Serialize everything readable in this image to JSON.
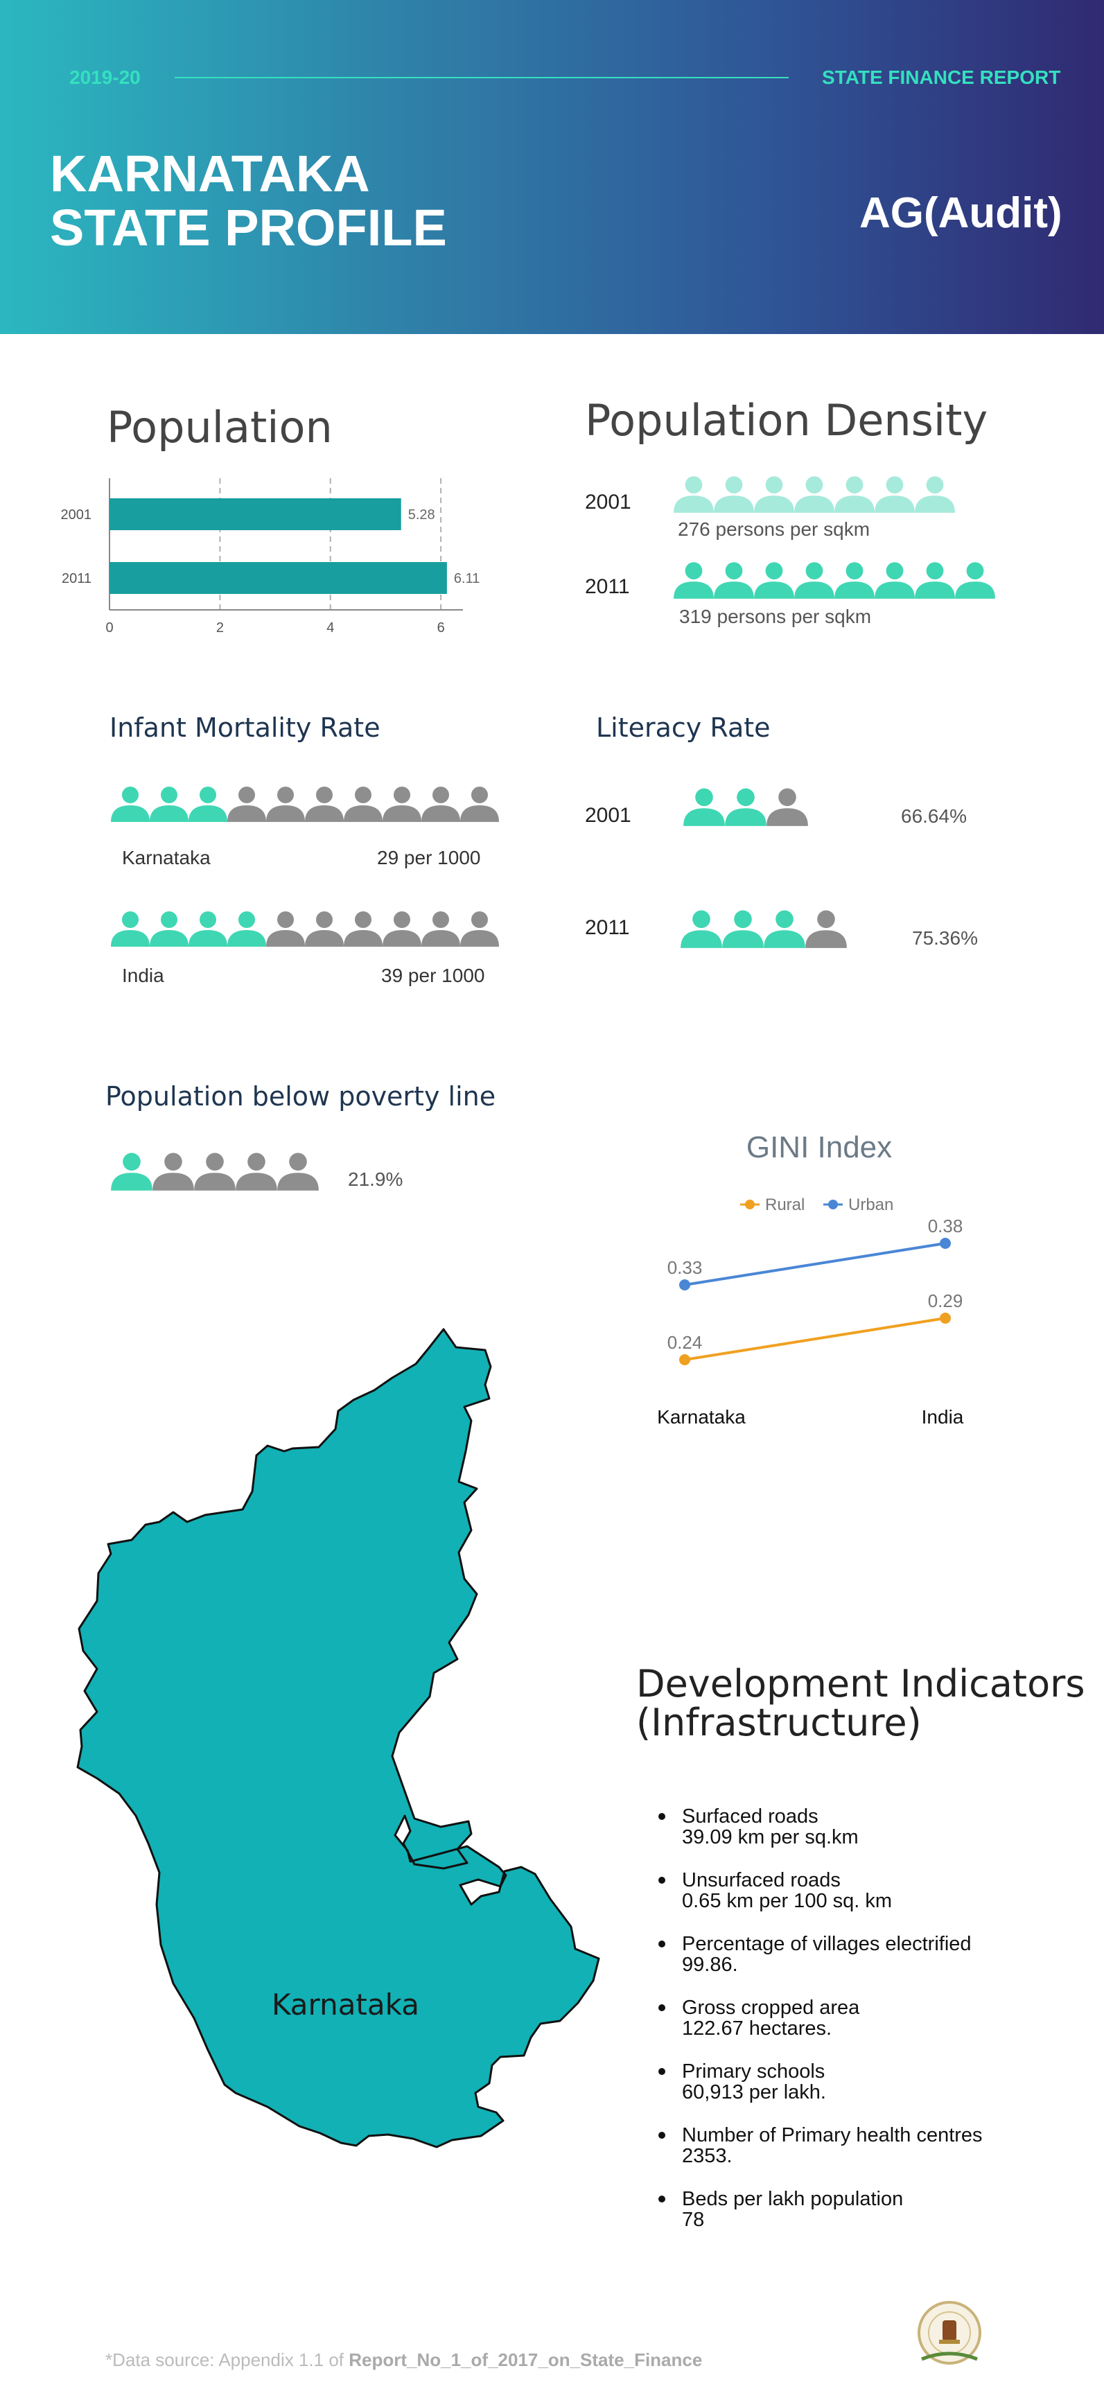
{
  "header": {
    "year": "2019-20",
    "report": "STATE FINANCE REPORT",
    "title_line1": "KARNATAKA",
    "title_line2": "STATE PROFILE",
    "org": "AG(Audit)"
  },
  "population": {
    "title": "Population",
    "chart_data": {
      "type": "bar",
      "orientation": "horizontal",
      "categories": [
        "2001",
        "2011"
      ],
      "values": [
        5.28,
        6.11
      ],
      "data_labels": [
        "5.28",
        "6.11"
      ],
      "xlim": [
        0,
        6.4
      ],
      "xticks": [
        "0",
        "2",
        "4",
        "6"
      ],
      "grid": "vertical dashed",
      "color": "#189e9e"
    }
  },
  "density": {
    "title": "Population Density",
    "rows": [
      {
        "year": "2001",
        "icons": 7,
        "caption": "276 persons per sqkm",
        "color": "#a6eadb"
      },
      {
        "year": "2011",
        "icons": 8,
        "caption": "319 persons per sqkm",
        "color": "#3fd6b3"
      }
    ]
  },
  "infant": {
    "title": "Infant Mortality Rate",
    "rows": [
      {
        "region": "Karnataka",
        "value": "29 per 1000",
        "highlight": 3,
        "total": 10
      },
      {
        "region": "India",
        "value": "39 per 1000",
        "highlight": 4,
        "total": 10
      }
    ]
  },
  "literacy": {
    "title": "Literacy Rate",
    "rows": [
      {
        "year": "2001",
        "value": "66.64%",
        "highlight": 2,
        "total": 3
      },
      {
        "year": "2011",
        "value": "75.36%",
        "highlight": 3,
        "total": 4
      }
    ]
  },
  "poverty": {
    "title": "Population below poverty line",
    "value": "21.9%",
    "highlight": 1,
    "total": 5
  },
  "gini": {
    "chart_data": {
      "type": "line",
      "title": "GINI Index",
      "categories": [
        "Karnataka",
        "India"
      ],
      "series": [
        {
          "name": "Rural",
          "values": [
            0.24,
            0.29
          ],
          "labels": [
            "0.24",
            "0.29"
          ],
          "color": "#f0a020"
        },
        {
          "name": "Urban",
          "values": [
            0.33,
            0.38
          ],
          "labels": [
            "0.33",
            "0.38"
          ],
          "color": "#4a86d6"
        }
      ],
      "legend": "top",
      "ylim": [
        0.2,
        0.4
      ]
    }
  },
  "map": {
    "label": "Karnataka",
    "color": "#12b1b5"
  },
  "development": {
    "title_line1": "Development Indicators",
    "title_line2": "(Infrastructure)",
    "items": [
      {
        "name": "Surfaced roads",
        "value": "39.09 km per sq.km"
      },
      {
        "name": "Unsurfaced roads",
        "value": "0.65 km per 100 sq. km"
      },
      {
        "name": "Percentage of villages electrified",
        "value": "99.86."
      },
      {
        "name": "Gross cropped area",
        "value": "122.67 hectares."
      },
      {
        "name": "Primary schools",
        "value": "60,913 per lakh."
      },
      {
        "name": "Number of Primary health centres",
        "value": "2353."
      },
      {
        "name": "Beds per lakh population",
        "value": "78"
      }
    ]
  },
  "footer": {
    "prefix": "*Data source: Appendix 1.1 of ",
    "source": "Report_No_1_of_2017_on_State_Finance"
  },
  "colors": {
    "teal": "#3fd6b3",
    "grey": "#8e8e8e",
    "accent": "#35e0c0"
  }
}
